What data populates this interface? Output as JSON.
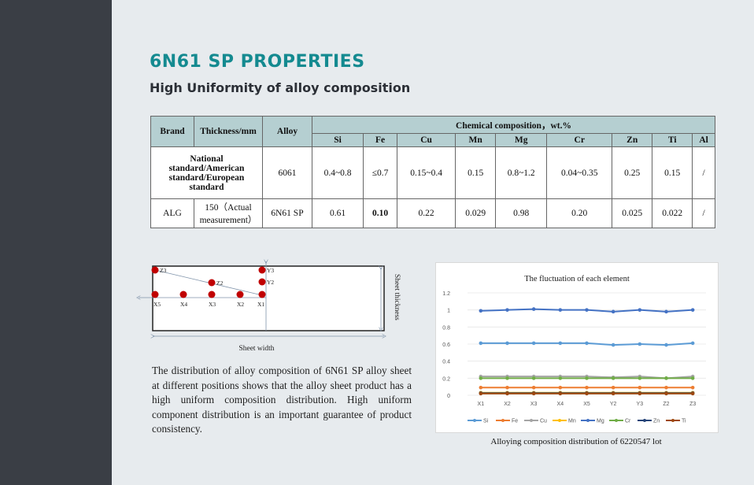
{
  "title": "6N61 SP PROPERTIES",
  "subtitle": "High Uniformity of alloy composition",
  "table": {
    "col_brand": "Brand",
    "col_thickness": "Thickness/mm",
    "col_alloy": "Alloy",
    "col_chem": "Chemical composition，wt.%",
    "elements": [
      "Si",
      "Fe",
      "Cu",
      "Mn",
      "Mg",
      "Cr",
      "Zn",
      "Ti",
      "Al"
    ],
    "rows": [
      {
        "brand": "National standard/American standard/European standard",
        "thickness": "",
        "alloy": "6061",
        "values": [
          "0.4~0.8",
          "≤0.7",
          "0.15~0.4",
          "0.15",
          "0.8~1.2",
          "0.04~0.35",
          "0.25",
          "0.15",
          "/"
        ]
      },
      {
        "brand": "ALG",
        "thickness": "150（Actual measurement）",
        "alloy": "6N61 SP",
        "values": [
          "0.61",
          "0.10",
          "0.22",
          "0.029",
          "0.98",
          "0.20",
          "0.025",
          "0.022",
          "/"
        ]
      }
    ]
  },
  "schematic": {
    "points": [
      "Z3",
      "Z2",
      "Y3",
      "Y2",
      "X5",
      "X4",
      "X3",
      "X2",
      "X1"
    ],
    "width_label": "Sheet width",
    "thickness_label": "Sheet thickness"
  },
  "paragraph": "The distribution of alloy composition of 6N61 SP alloy sheet at different positions shows that the alloy sheet product has a high uniform composition distribution. High uniform component distribution is an important guarantee of product consistency.",
  "chart_data": {
    "type": "line",
    "title": "The fluctuation of each element",
    "categories": [
      "X1",
      "X2",
      "X3",
      "X4",
      "X5",
      "Y2",
      "Y3",
      "Z2",
      "Z3"
    ],
    "ylim": [
      0,
      1.2
    ],
    "yticks": [
      "0",
      "0.2",
      "0.4",
      "0.6",
      "0.8",
      "1",
      "1.2"
    ],
    "series": [
      {
        "name": "Si",
        "color": "#5b9bd5",
        "values": [
          0.61,
          0.61,
          0.61,
          0.61,
          0.61,
          0.59,
          0.6,
          0.59,
          0.61
        ]
      },
      {
        "name": "Fe",
        "color": "#ed7d31",
        "values": [
          0.09,
          0.09,
          0.09,
          0.09,
          0.09,
          0.09,
          0.09,
          0.09,
          0.09
        ]
      },
      {
        "name": "Cu",
        "color": "#a5a5a5",
        "values": [
          0.22,
          0.22,
          0.22,
          0.22,
          0.22,
          0.21,
          0.22,
          0.2,
          0.22
        ]
      },
      {
        "name": "Mn",
        "color": "#ffc000",
        "values": [
          0.03,
          0.03,
          0.03,
          0.03,
          0.03,
          0.03,
          0.03,
          0.03,
          0.03
        ]
      },
      {
        "name": "Mg",
        "color": "#4472c4",
        "values": [
          0.99,
          1.0,
          1.01,
          1.0,
          1.0,
          0.98,
          1.0,
          0.98,
          1.0
        ]
      },
      {
        "name": "Cr",
        "color": "#70ad47",
        "values": [
          0.2,
          0.2,
          0.2,
          0.2,
          0.2,
          0.2,
          0.2,
          0.2,
          0.2
        ]
      },
      {
        "name": "Zn",
        "color": "#264478",
        "values": [
          0.025,
          0.025,
          0.025,
          0.025,
          0.025,
          0.025,
          0.025,
          0.025,
          0.025
        ]
      },
      {
        "name": "Ti",
        "color": "#9e480e",
        "values": [
          0.02,
          0.02,
          0.02,
          0.02,
          0.02,
          0.02,
          0.02,
          0.02,
          0.02
        ]
      }
    ]
  },
  "chart_caption": "Alloying composition distribution of 6220547 lot"
}
